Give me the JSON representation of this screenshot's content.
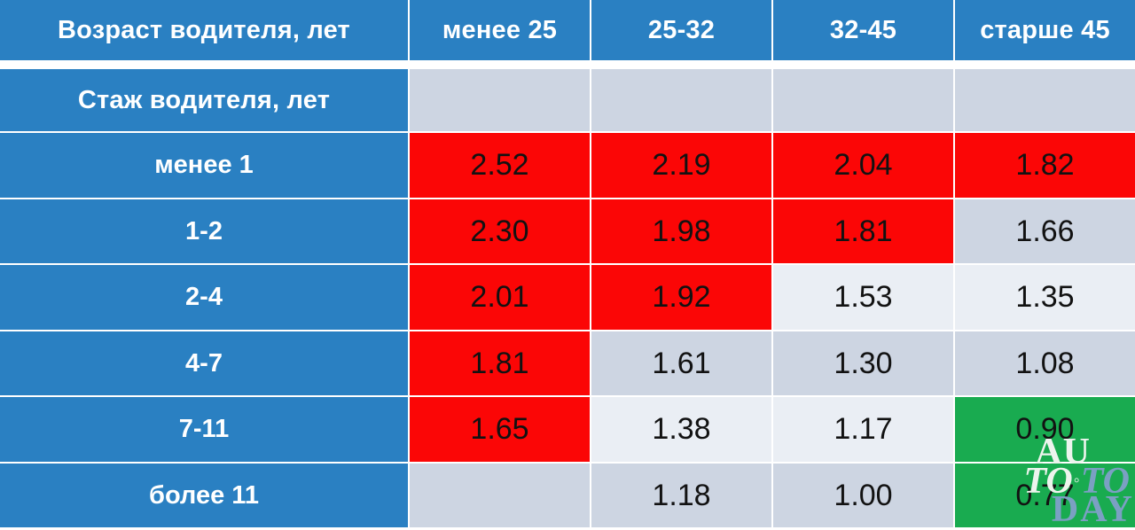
{
  "colors": {
    "blue": "#2A80C2",
    "red": "#FB0606",
    "green": "#19AB50",
    "dark": "#CDD5E2",
    "light": "#EAEEF4",
    "ink": "#121212",
    "wmWhite": "#EDF4ED",
    "wmBlue": "#7BA0C3"
  },
  "watermark": {
    "line1": "AU",
    "line2a": "TO",
    "circle": "◦",
    "line2b": "TO",
    "line3": "DAY"
  },
  "chart_data": {
    "type": "table",
    "title": "",
    "corner_header": "Возраст водителя, лет",
    "row_group_header": "Стаж водителя, лет",
    "columns": [
      "менее 25",
      "25-32",
      "32-45",
      "старше 45"
    ],
    "rows": [
      {
        "label": "менее 1",
        "values": [
          "2.52",
          "2.19",
          "2.04",
          "1.82"
        ],
        "colors": [
          "red",
          "red",
          "red",
          "red"
        ]
      },
      {
        "label": "1-2",
        "values": [
          "2.30",
          "1.98",
          "1.81",
          "1.66"
        ],
        "colors": [
          "red",
          "red",
          "red",
          "dark"
        ]
      },
      {
        "label": "2-4",
        "values": [
          "2.01",
          "1.92",
          "1.53",
          "1.35"
        ],
        "colors": [
          "red",
          "red",
          "light",
          "light"
        ]
      },
      {
        "label": "4-7",
        "values": [
          "1.81",
          "1.61",
          "1.30",
          "1.08"
        ],
        "colors": [
          "red",
          "dark",
          "dark",
          "dark"
        ]
      },
      {
        "label": "7-11",
        "values": [
          "1.65",
          "1.38",
          "1.17",
          "0.90"
        ],
        "colors": [
          "red",
          "light",
          "light",
          "green"
        ]
      },
      {
        "label": "более 11",
        "values": [
          "",
          "1.18",
          "1.00",
          "0.77"
        ],
        "colors": [
          "dark",
          "dark",
          "dark",
          "green"
        ]
      }
    ]
  }
}
